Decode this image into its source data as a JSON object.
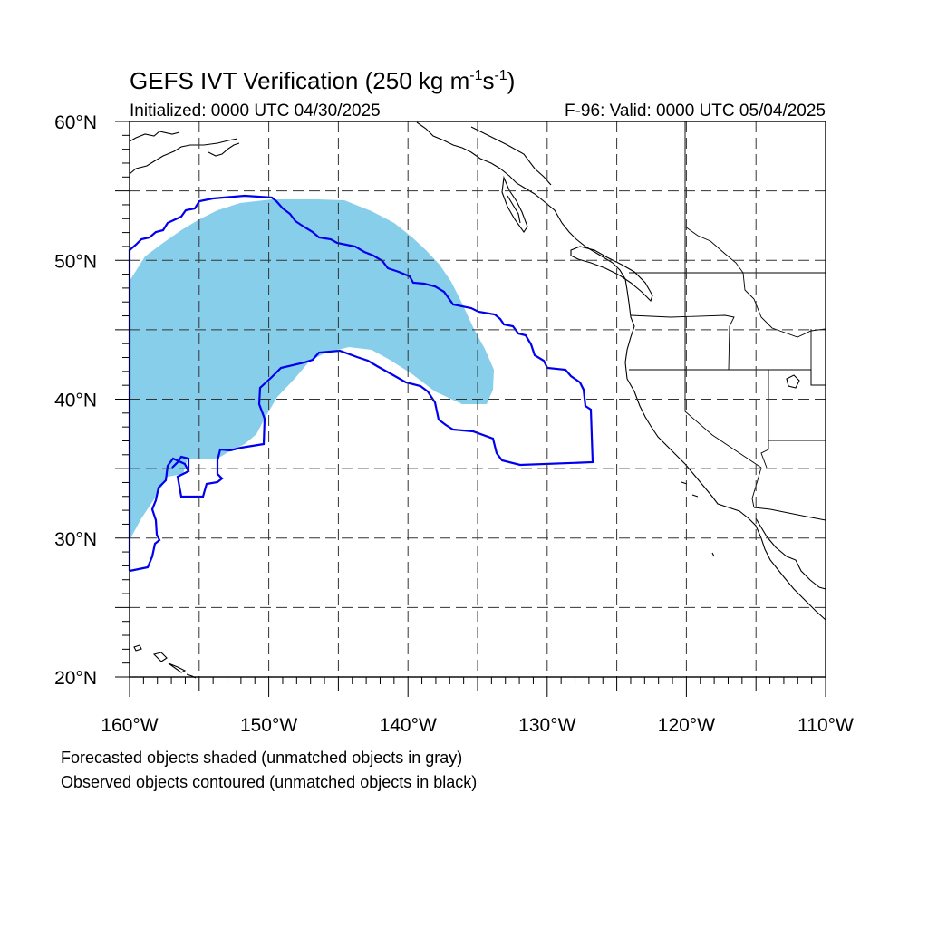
{
  "header": {
    "title_main": "GEFS IVT Verification (250 kg m",
    "title_exp1": "-1",
    "title_mid": "s",
    "title_exp2": "-1",
    "title_end": ")",
    "initialized": "Initialized: 0000 UTC 04/30/2025",
    "valid": "F-96: Valid: 0000 UTC 05/04/2025"
  },
  "map": {
    "projection": "cylindrical-equidistant",
    "lon_range": [
      -160,
      -110
    ],
    "lat_range": [
      20,
      60
    ],
    "grid": true,
    "grid_style": "dashed",
    "lon_ticks": [
      {
        "value": -160,
        "label": "160°W"
      },
      {
        "value": -150,
        "label": "150°W"
      },
      {
        "value": -140,
        "label": "140°W"
      },
      {
        "value": -130,
        "label": "130°W"
      },
      {
        "value": -120,
        "label": "120°W"
      },
      {
        "value": -110,
        "label": "110°W"
      }
    ],
    "lat_ticks": [
      {
        "value": 60,
        "label": "60°N"
      },
      {
        "value": 50,
        "label": "50°N"
      },
      {
        "value": 40,
        "label": "40°N"
      },
      {
        "value": 30,
        "label": "30°N"
      },
      {
        "value": 20,
        "label": "20°N"
      }
    ],
    "forecast_color": "#87ceeb",
    "observed_color": "#0000ee",
    "coast_color": "#000000"
  },
  "legend": {
    "line1": "Forecasted objects shaded (unmatched objects in gray)",
    "line2": "Observed objects contoured (unmatched objects in black)"
  }
}
